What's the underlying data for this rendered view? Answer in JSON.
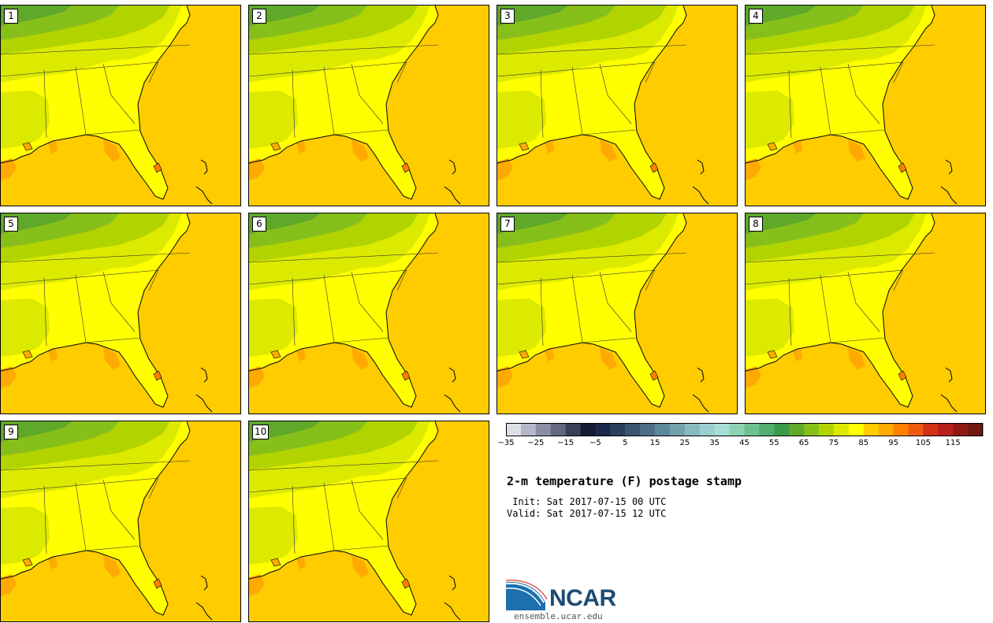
{
  "panels": [
    {
      "label": "1"
    },
    {
      "label": "2"
    },
    {
      "label": "3"
    },
    {
      "label": "4"
    },
    {
      "label": "5"
    },
    {
      "label": "6"
    },
    {
      "label": "7"
    },
    {
      "label": "8"
    },
    {
      "label": "9"
    },
    {
      "label": "10"
    }
  ],
  "colorbar": {
    "colors": [
      "#dcdfe6",
      "#b4b7c6",
      "#8c8fa3",
      "#636880",
      "#394058",
      "#161c36",
      "#1b2a4a",
      "#2b3f5c",
      "#3b5570",
      "#4b6e86",
      "#5e879a",
      "#72a0ad",
      "#86bac1",
      "#9ad0cf",
      "#a6ddd5",
      "#8cd2b3",
      "#6ec18f",
      "#53ad6e",
      "#3b9a47",
      "#5ea82a",
      "#87bf1a",
      "#b1d400",
      "#dcea00",
      "#ffff00",
      "#ffcc00",
      "#ffaa00",
      "#ff8000",
      "#f05a10",
      "#d33018",
      "#b72018",
      "#8f1810",
      "#6e1810"
    ],
    "tick_labels": [
      "−35",
      "−25",
      "−15",
      "−5",
      "5",
      "15",
      "25",
      "35",
      "45",
      "55",
      "65",
      "75",
      "85",
      "95",
      "105",
      "115"
    ]
  },
  "title": "2-m temperature (F) postage stamp",
  "init": " Init: Sat 2017-07-15 00 UTC",
  "valid": "Valid: Sat 2017-07-15 12 UTC",
  "logo": {
    "name": "NCAR",
    "url": "ensemble.ucar.edu"
  }
}
